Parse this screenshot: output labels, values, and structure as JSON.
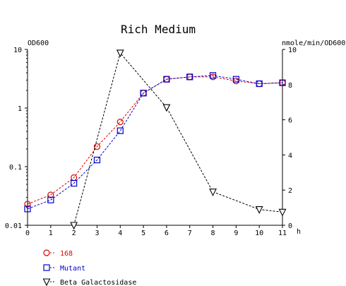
{
  "chart_data": {
    "type": "line",
    "title": "Rich Medium",
    "y_left_label": "OD600",
    "y_right_label": "nmole/min/OD600",
    "x_unit_label": "h",
    "x_ticks": [
      "0",
      "1",
      "2",
      "3",
      "4",
      "5",
      "6",
      "7",
      "8",
      "9",
      "10",
      "11"
    ],
    "y_left_ticks": [
      "10",
      "1",
      "0.1",
      "0.01"
    ],
    "y_left_tick_values": [
      10,
      1,
      0.1,
      0.01
    ],
    "y_left_scale": "log",
    "y_left_range": [
      0.01,
      10
    ],
    "y_right_ticks": [
      "10",
      "8",
      "6",
      "4",
      "2",
      "0"
    ],
    "y_right_tick_values": [
      10,
      8,
      6,
      4,
      2,
      0
    ],
    "y_right_range": [
      0,
      10
    ],
    "x_range": [
      0,
      11
    ],
    "grid": false,
    "legend_position": "bottom-left",
    "colors": {
      "red": "#dd0000",
      "blue": "#0000cc",
      "black": "#000000"
    },
    "series": [
      {
        "name": "168",
        "axis": "left",
        "marker": "circle",
        "color": "#dd0000",
        "x": [
          0,
          1,
          2,
          3,
          4,
          5,
          6,
          7,
          8,
          9,
          10,
          11
        ],
        "y": [
          0.023,
          0.033,
          0.065,
          0.22,
          0.58,
          1.8,
          3.1,
          3.4,
          3.4,
          2.9,
          2.6,
          2.7
        ]
      },
      {
        "name": "Mutant",
        "axis": "left",
        "marker": "square",
        "color": "#0000cc",
        "x": [
          0,
          1,
          2,
          3,
          4,
          5,
          6,
          7,
          8,
          9,
          10,
          11
        ],
        "y": [
          0.019,
          0.027,
          0.052,
          0.13,
          0.41,
          1.8,
          3.1,
          3.4,
          3.6,
          3.1,
          2.6,
          2.7
        ]
      },
      {
        "name": "Beta Galactosidase",
        "axis": "right",
        "marker": "triangle-down",
        "color": "#000000",
        "x": [
          2,
          4,
          6,
          8,
          10,
          11
        ],
        "y": [
          0.0,
          9.8,
          6.7,
          1.9,
          0.9,
          0.75
        ]
      }
    ]
  }
}
